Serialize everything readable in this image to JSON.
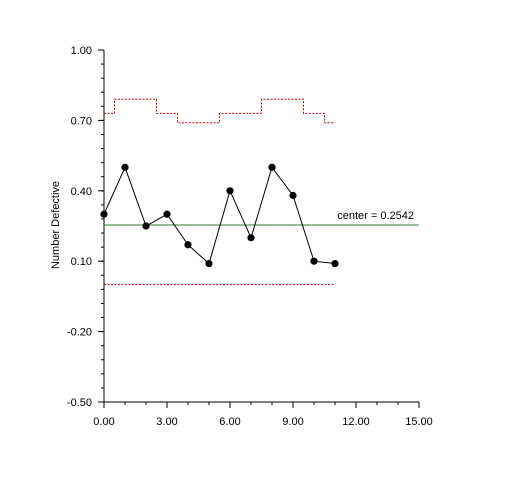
{
  "chart_data": {
    "type": "line",
    "title": "",
    "xlabel": "",
    "ylabel": "Number Defective",
    "xlim": [
      0,
      15
    ],
    "ylim": [
      -0.5,
      1.0
    ],
    "x_ticks": [
      0,
      3,
      6,
      9,
      12,
      15
    ],
    "x_tick_labels": [
      "0.00",
      "3.00",
      "6.00",
      "9.00",
      "12.00",
      "15.00"
    ],
    "y_ticks": [
      -0.5,
      -0.2,
      0.1,
      0.4,
      0.7,
      1.0
    ],
    "y_tick_labels": [
      "-0.50",
      "-0.20",
      "0.10",
      "0.40",
      "0.70",
      "1.00"
    ],
    "grid": false,
    "series": [
      {
        "name": "",
        "x": [
          0,
          1,
          2,
          3,
          4,
          5,
          6,
          7,
          8,
          9,
          10,
          11
        ],
        "values": [
          0.3,
          0.5,
          0.25,
          0.3,
          0.17,
          0.09,
          0.4,
          0.2,
          0.5,
          0.38,
          0.1,
          0.09
        ]
      }
    ],
    "center_line": {
      "value": 0.2542,
      "label": "center = 0.2542"
    },
    "upper_control_limit": {
      "x": [
        0,
        0.5,
        2.5,
        3.5,
        5.5,
        7.5,
        9.5,
        10.5,
        11
      ],
      "values": [
        0.73,
        0.79,
        0.73,
        0.69,
        0.73,
        0.79,
        0.73,
        0.69,
        0.69
      ]
    },
    "lower_control_limit": {
      "value": 0.0,
      "x_range": [
        0,
        11
      ]
    },
    "colors": {
      "series": "#000000",
      "center_line": "#2e7d2e",
      "control_limits": "#cc0000",
      "axis": "#000000"
    }
  }
}
